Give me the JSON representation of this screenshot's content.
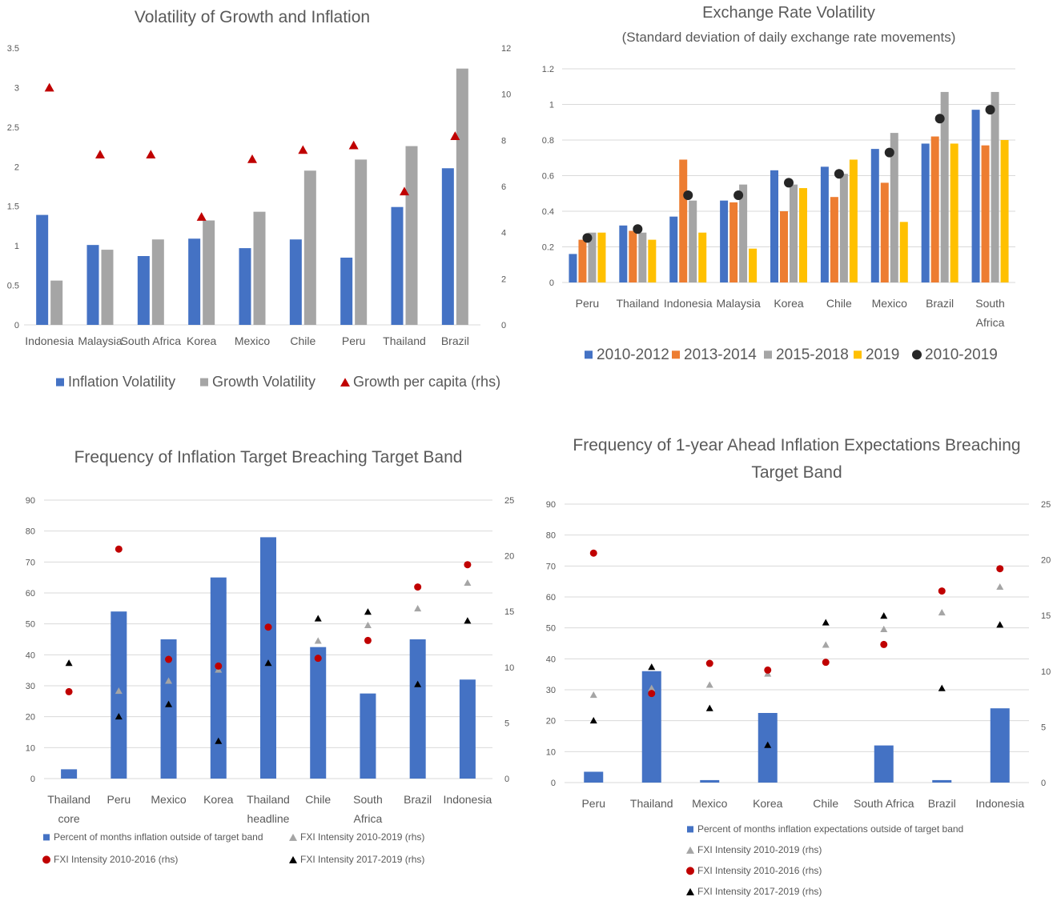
{
  "colors": {
    "blue": "#4472C4",
    "orange": "#ED7D31",
    "gray": "#A5A5A5",
    "yellow": "#FFC000",
    "dark": "#262626",
    "red": "#C00000",
    "black": "#000000",
    "grid": "#D9D9D9"
  },
  "chart_data": [
    {
      "type": "bar",
      "title": "Volatility of Growth and Inflation",
      "categories": [
        "Indonesia",
        "Malaysia",
        "South Africa",
        "Korea",
        "Mexico",
        "Chile",
        "Peru",
        "Thailand",
        "Brazil"
      ],
      "series": [
        {
          "name": "Inflation Volatility",
          "type": "bar",
          "axis": "left",
          "color": "blue",
          "values": [
            1.39,
            1.01,
            0.87,
            1.09,
            0.97,
            1.08,
            0.85,
            1.49,
            1.98
          ]
        },
        {
          "name": "Growth Volatility",
          "type": "bar",
          "axis": "left",
          "color": "gray",
          "values": [
            0.56,
            0.95,
            1.08,
            1.32,
            1.43,
            1.95,
            2.09,
            2.26,
            3.24
          ]
        },
        {
          "name": "Growth per capita (rhs)",
          "type": "marker",
          "marker": "triangle",
          "axis": "right",
          "color": "red",
          "values": [
            10.3,
            7.4,
            7.4,
            4.7,
            7.2,
            7.6,
            7.8,
            5.8,
            8.2
          ]
        }
      ],
      "left_axis": {
        "min": 0,
        "max": 3.5,
        "step": 0.5,
        "ticks": [
          "0",
          "0.5",
          "1",
          "1.5",
          "2",
          "2.5",
          "3",
          "3.5"
        ]
      },
      "right_axis": {
        "min": 0,
        "max": 12,
        "step": 2,
        "ticks": [
          "0",
          "2",
          "4",
          "6",
          "8",
          "10",
          "12"
        ]
      },
      "grid": false,
      "legend_position": "bottom"
    },
    {
      "type": "bar",
      "title": "Exchange Rate Volatility",
      "subtitle": "(Standard deviation of daily exchange rate movements)",
      "categories": [
        "Peru",
        "Thailand",
        "Indonesia",
        "Malaysia",
        "Korea",
        "Chile",
        "Mexico",
        "Brazil",
        "South Africa"
      ],
      "category_lines": [
        [
          "Peru"
        ],
        [
          "Thailand"
        ],
        [
          "Indonesia"
        ],
        [
          "Malaysia"
        ],
        [
          "Korea"
        ],
        [
          "Chile"
        ],
        [
          "Mexico"
        ],
        [
          "Brazil"
        ],
        [
          "South",
          "Africa"
        ]
      ],
      "series": [
        {
          "name": "2010-2012",
          "type": "bar",
          "axis": "left",
          "color": "blue",
          "values": [
            0.16,
            0.32,
            0.37,
            0.46,
            0.63,
            0.65,
            0.75,
            0.78,
            0.97
          ]
        },
        {
          "name": "2013-2014",
          "type": "bar",
          "axis": "left",
          "color": "orange",
          "values": [
            0.24,
            0.29,
            0.69,
            0.45,
            0.4,
            0.48,
            0.56,
            0.82,
            0.77
          ]
        },
        {
          "name": "2015-2018",
          "type": "bar",
          "axis": "left",
          "color": "gray",
          "values": [
            0.28,
            0.28,
            0.46,
            0.55,
            0.55,
            0.61,
            0.84,
            1.07,
            1.07
          ]
        },
        {
          "name": "2019",
          "type": "bar",
          "axis": "left",
          "color": "yellow",
          "values": [
            0.28,
            0.24,
            0.28,
            0.19,
            0.53,
            0.69,
            0.34,
            0.78,
            0.8
          ]
        },
        {
          "name": "2010-2019",
          "type": "marker",
          "marker": "circle",
          "axis": "left",
          "color": "dark",
          "values": [
            0.25,
            0.3,
            0.49,
            0.49,
            0.56,
            0.61,
            0.73,
            0.92,
            0.97
          ]
        }
      ],
      "left_axis": {
        "min": 0,
        "max": 1.2,
        "step": 0.2,
        "ticks": [
          "0",
          "0.2",
          "0.4",
          "0.6",
          "0.8",
          "1",
          "1.2"
        ]
      },
      "grid": true,
      "legend_position": "bottom"
    },
    {
      "type": "bar",
      "title": "Frequency of Inflation Target Breaching Target Band",
      "categories": [
        "Thailand core",
        "Peru",
        "Mexico",
        "Korea",
        "Thailand headline",
        "Chile",
        "South Africa",
        "Brazil",
        "Indonesia"
      ],
      "category_lines": [
        [
          "Thailand",
          "core"
        ],
        [
          "Peru"
        ],
        [
          "Mexico"
        ],
        [
          "Korea"
        ],
        [
          "Thailand",
          "headline"
        ],
        [
          "Chile"
        ],
        [
          "South",
          "Africa"
        ],
        [
          "Brazil"
        ],
        [
          "Indonesia"
        ]
      ],
      "series": [
        {
          "name": "Percent of months inflation  outside of target band",
          "type": "bar",
          "axis": "left",
          "color": "blue",
          "values": [
            3,
            54,
            45,
            65,
            78,
            42.5,
            27.5,
            45,
            32
          ]
        },
        {
          "name": "FXI Intensity 2010-2019 (rhs)",
          "type": "marker",
          "marker": "triangle",
          "axis": "right",
          "color": "gray",
          "values": [
            null,
            7.9,
            8.8,
            9.8,
            null,
            12.4,
            13.8,
            15.3,
            17.6
          ]
        },
        {
          "name": "FXI Intensity 2010-2016 (rhs)",
          "type": "marker",
          "marker": "circle",
          "axis": "right",
          "color": "red",
          "values": [
            7.8,
            20.6,
            10.7,
            10.1,
            13.6,
            10.8,
            12.4,
            17.2,
            19.2
          ]
        },
        {
          "name": "FXI Intensity 2017-2019 (rhs)",
          "type": "marker",
          "marker": "triangle",
          "axis": "right",
          "color": "black",
          "values": [
            10.4,
            5.6,
            6.7,
            3.4,
            10.4,
            14.4,
            15.0,
            8.5,
            14.2
          ]
        }
      ],
      "left_axis": {
        "min": 0,
        "max": 90,
        "step": 10,
        "ticks": [
          "0",
          "10",
          "20",
          "30",
          "40",
          "50",
          "60",
          "70",
          "80",
          "90"
        ]
      },
      "right_axis": {
        "min": 0,
        "max": 25,
        "step": 5,
        "ticks": [
          "0",
          "5",
          "10",
          "15",
          "20",
          "25"
        ]
      },
      "grid": true,
      "legend_position": "bottom"
    },
    {
      "type": "bar",
      "title": "Frequency of 1-year Ahead Inflation Expectations Breaching Target Band",
      "title_lines": [
        "Frequency of 1-year Ahead Inflation Expectations Breaching",
        "Target Band"
      ],
      "categories": [
        "Peru",
        "Thailand",
        "Mexico",
        "Korea",
        "Chile",
        "South Africa",
        "Brazil",
        "Indonesia"
      ],
      "series": [
        {
          "name": "Percent of months inflation expectations outside of target band",
          "type": "bar",
          "axis": "left",
          "color": "blue",
          "values": [
            3.5,
            36,
            0.8,
            22.5,
            0,
            12,
            0.8,
            24
          ]
        },
        {
          "name": "FXI Intensity 2010-2019 (rhs)",
          "type": "marker",
          "marker": "triangle",
          "axis": "right",
          "color": "gray",
          "values": [
            7.9,
            8.5,
            8.8,
            9.8,
            12.4,
            13.8,
            15.3,
            17.6
          ]
        },
        {
          "name": "FXI Intensity 2010-2016 (rhs)",
          "type": "marker",
          "marker": "circle",
          "axis": "right",
          "color": "red",
          "values": [
            20.6,
            8.0,
            10.7,
            10.1,
            10.8,
            12.4,
            17.2,
            19.2
          ]
        },
        {
          "name": "FXI Intensity 2017-2019 (rhs)",
          "type": "marker",
          "marker": "triangle",
          "axis": "right",
          "color": "black",
          "values": [
            5.6,
            10.4,
            6.7,
            3.4,
            14.4,
            15.0,
            8.5,
            14.2
          ]
        }
      ],
      "left_axis": {
        "min": 0,
        "max": 90,
        "step": 10,
        "ticks": [
          "0",
          "10",
          "20",
          "30",
          "40",
          "50",
          "60",
          "70",
          "80",
          "90"
        ]
      },
      "right_axis": {
        "min": 0,
        "max": 25,
        "step": 5,
        "ticks": [
          "0",
          "5",
          "10",
          "15",
          "20",
          "25"
        ]
      },
      "grid": true,
      "legend_position": "bottom"
    }
  ]
}
